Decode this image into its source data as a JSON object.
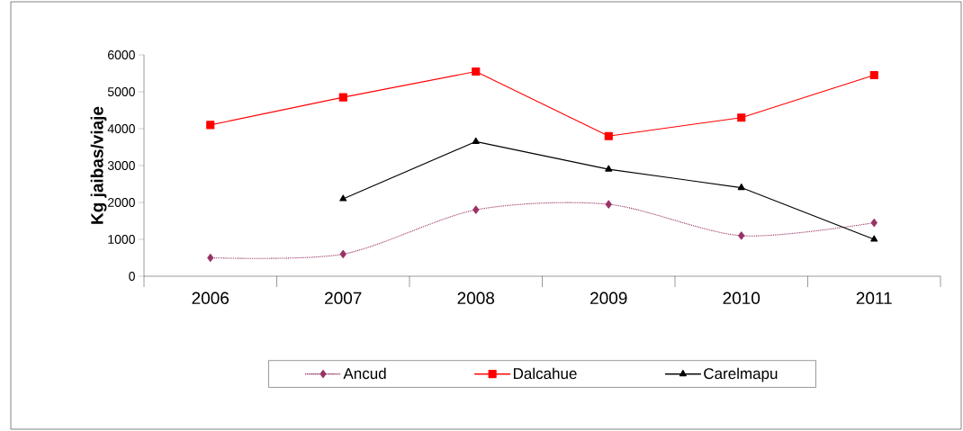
{
  "chart_data": {
    "type": "line",
    "ylabel": "Kg jaibas/viaje",
    "categories": [
      "2006",
      "2007",
      "2008",
      "2009",
      "2010",
      "2011"
    ],
    "series": [
      {
        "name": "Ancud",
        "color": "#993366",
        "marker": "diamond",
        "line_style": "dotted",
        "values": [
          500,
          600,
          1800,
          1950,
          1100,
          1450
        ]
      },
      {
        "name": "Dalcahue",
        "color": "#ff0000",
        "marker": "square",
        "line_style": "solid",
        "values": [
          4100,
          4850,
          5550,
          3800,
          4300,
          5450
        ]
      },
      {
        "name": "Carelmapu",
        "color": "#000000",
        "marker": "triangle",
        "line_style": "solid",
        "values": [
          null,
          2100,
          3650,
          2900,
          2400,
          1000
        ]
      }
    ],
    "ylim": [
      0,
      6000
    ],
    "yticks": [
      0,
      1000,
      2000,
      3000,
      4000,
      5000,
      6000
    ],
    "grid": false,
    "legend": "bottom"
  }
}
